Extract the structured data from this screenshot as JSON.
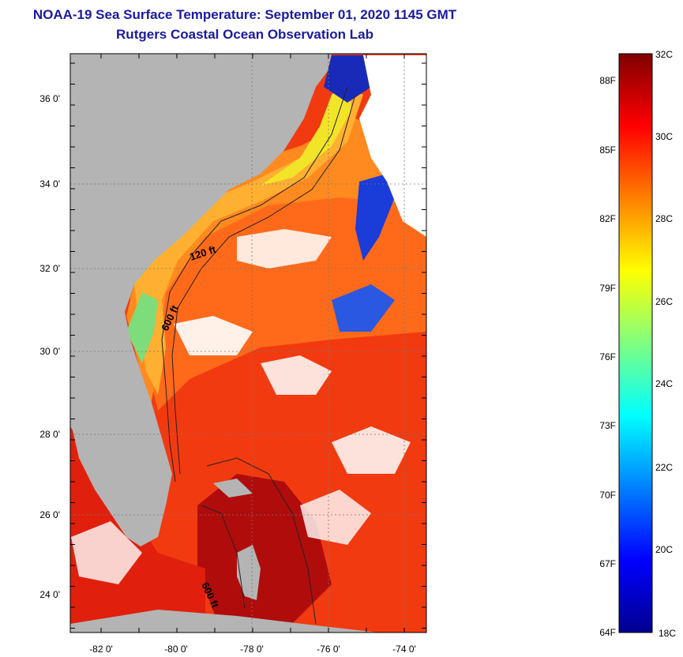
{
  "header": {
    "title": "NOAA-19 Sea Surface Temperature:  September 01, 2020 1145 GMT",
    "subtitle": "Rutgers Coastal Ocean Observation Lab"
  },
  "map": {
    "latitude_labels": [
      "36 0'",
      "34 0'",
      "32 0'",
      "30 0'",
      "28 0'",
      "26 0'",
      "24 0'"
    ],
    "longitude_labels": [
      "-82 0'",
      "-80 0'",
      "-78 0'",
      "-76 0'",
      "-74 0'"
    ],
    "contour_labels": [
      "120 ft",
      "600 ft",
      "600 ft"
    ],
    "land_color": "#b4b4b4",
    "cloud_color": "#ffffff"
  },
  "colorbar": {
    "celsius_labels": [
      "32C",
      "30C",
      "28C",
      "26C",
      "24C",
      "22C",
      "20C",
      "18C"
    ],
    "fahrenheit_labels": [
      "88F",
      "85F",
      "82F",
      "79F",
      "76F",
      "73F",
      "70F",
      "67F",
      "64F"
    ],
    "colors": [
      "#00008f",
      "#0000ff",
      "#0080ff",
      "#00ffff",
      "#80ff80",
      "#ffff00",
      "#ff8000",
      "#ff0000",
      "#800000"
    ]
  }
}
